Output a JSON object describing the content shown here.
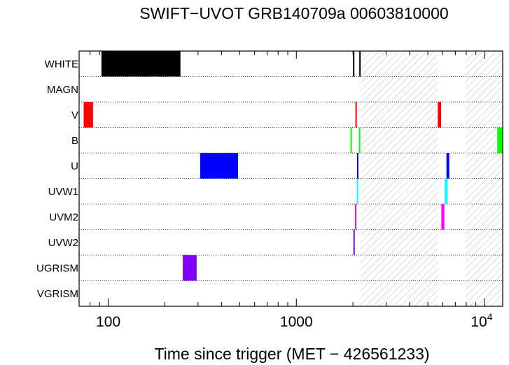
{
  "chart_data": {
    "type": "timeline",
    "title": "SWIFT−UVOT GRB140709a 00603810000",
    "xlabel": "Time since trigger (MET − 426561233)",
    "xscale": "log",
    "xlim": [
      70,
      12500
    ],
    "x_ticks": [
      {
        "value": 100,
        "label": "100",
        "exp": ""
      },
      {
        "value": 1000,
        "label": "1000",
        "exp": ""
      },
      {
        "value": 10000,
        "label": "10",
        "exp": "4"
      }
    ],
    "filters": [
      "WHITE",
      "MAGN",
      "V",
      "B",
      "U",
      "UVW1",
      "UVM2",
      "UVW2",
      "UGRISM",
      "VGRISM"
    ],
    "grid": "dotted row separators",
    "shaded_intervals": [
      {
        "start": 2200,
        "end": 5650
      },
      {
        "start": 7900,
        "end": 12500
      }
    ],
    "exposures": [
      {
        "filter": "WHITE",
        "start": 92,
        "end": 242,
        "color": "#000000"
      },
      {
        "filter": "WHITE",
        "start": 2000,
        "end": 2005,
        "color": "#000000"
      },
      {
        "filter": "WHITE",
        "start": 2160,
        "end": 2166,
        "color": "#000000"
      },
      {
        "filter": "V",
        "start": 74,
        "end": 83,
        "color": "#ff0000"
      },
      {
        "filter": "V",
        "start": 2060,
        "end": 2070,
        "color": "#ff0000"
      },
      {
        "filter": "V",
        "start": 5650,
        "end": 5880,
        "color": "#ff0000"
      },
      {
        "filter": "B",
        "start": 1940,
        "end": 1955,
        "color": "#00ff00"
      },
      {
        "filter": "B",
        "start": 2150,
        "end": 2165,
        "color": "#00ff00"
      },
      {
        "filter": "B",
        "start": 11700,
        "end": 12500,
        "color": "#00ff00"
      },
      {
        "filter": "U",
        "start": 308,
        "end": 490,
        "color": "#0000ff"
      },
      {
        "filter": "U",
        "start": 2100,
        "end": 2115,
        "color": "#0000ff"
      },
      {
        "filter": "U",
        "start": 6280,
        "end": 6500,
        "color": "#0000ff"
      },
      {
        "filter": "UVW1",
        "start": 2095,
        "end": 2125,
        "color": "#00ffff"
      },
      {
        "filter": "UVW1",
        "start": 6150,
        "end": 6370,
        "color": "#00ffff"
      },
      {
        "filter": "UVM2",
        "start": 2050,
        "end": 2065,
        "color": "#ff00ff"
      },
      {
        "filter": "UVM2",
        "start": 5900,
        "end": 6120,
        "color": "#ff00ff"
      },
      {
        "filter": "UVW2",
        "start": 2010,
        "end": 2022,
        "color": "#8000ff"
      },
      {
        "filter": "UGRISM",
        "start": 249,
        "end": 295,
        "color": "#8000ff"
      }
    ]
  }
}
